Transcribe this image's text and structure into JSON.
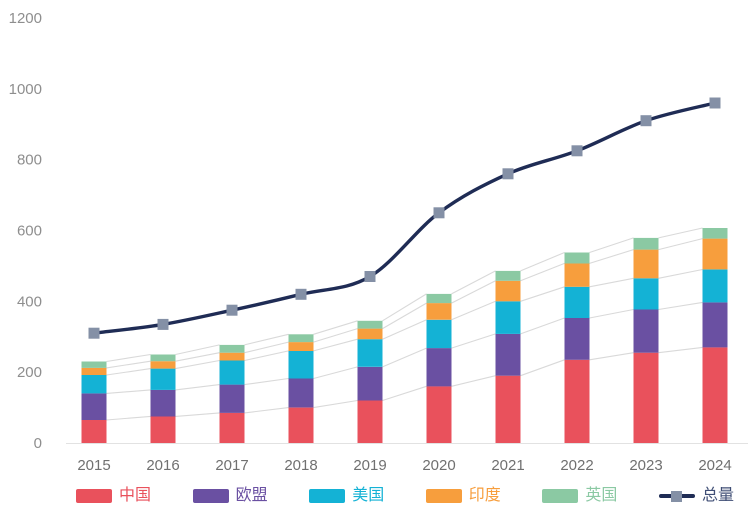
{
  "chart_data": {
    "type": "bar",
    "subtype": "stacked-bars-with-total-line",
    "title": "",
    "xlabel": "",
    "ylabel": "",
    "categories": [
      "2015",
      "2016",
      "2017",
      "2018",
      "2019",
      "2020",
      "2021",
      "2022",
      "2023",
      "2024"
    ],
    "series": [
      {
        "key": "china",
        "name": "中国",
        "kind": "bar",
        "color": "#e9515c",
        "values": [
          65,
          75,
          85,
          100,
          120,
          160,
          190,
          235,
          255,
          270
        ]
      },
      {
        "key": "eu",
        "name": "欧盟",
        "kind": "bar",
        "color": "#6a50a2",
        "values": [
          75,
          75,
          80,
          82,
          95,
          108,
          118,
          118,
          122,
          127
        ]
      },
      {
        "key": "usa",
        "name": "美国",
        "kind": "bar",
        "color": "#14b2d5",
        "values": [
          52,
          60,
          68,
          78,
          78,
          80,
          92,
          88,
          88,
          93
        ]
      },
      {
        "key": "india",
        "name": "印度",
        "kind": "bar",
        "color": "#f79e3d",
        "values": [
          20,
          21,
          22,
          25,
          30,
          47,
          58,
          66,
          81,
          87
        ]
      },
      {
        "key": "uk",
        "name": "英国",
        "kind": "bar",
        "color": "#8bc9a3",
        "values": [
          18,
          19,
          22,
          22,
          22,
          26,
          28,
          31,
          33,
          30
        ]
      },
      {
        "key": "total",
        "name": "总量",
        "kind": "line",
        "color": "#1f2c55",
        "marker_color": "#8490a6",
        "values": [
          310,
          335,
          375,
          420,
          470,
          650,
          760,
          825,
          910,
          960
        ]
      }
    ],
    "stacked": true,
    "ylim": [
      0,
      1200
    ],
    "yticks": [
      0,
      200,
      400,
      600,
      800,
      1000,
      1200
    ],
    "grid": false,
    "legend_position": "bottom",
    "colors": {
      "background": "#ffffff",
      "y_tick_label": "#8e8e8e",
      "x_tick_label": "#707070",
      "axis_line": "#e2e2e2",
      "connector_line": "#d9d9d9",
      "total_legend_text": "#3f4e75"
    }
  }
}
